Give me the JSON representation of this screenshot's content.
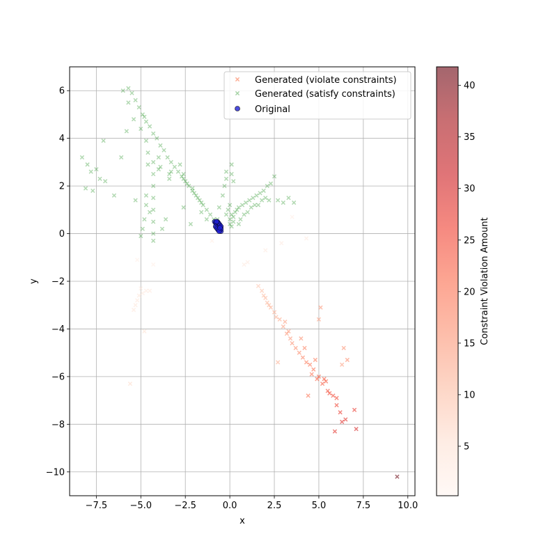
{
  "chart_data": {
    "type": "scatter",
    "xlabel": "x",
    "ylabel": "y",
    "xlim": [
      -9.0,
      10.4
    ],
    "ylim": [
      -11.0,
      7.0
    ],
    "xticks": [
      -7.5,
      -5.0,
      -2.5,
      0.0,
      2.5,
      5.0,
      7.5,
      10.0
    ],
    "yticks": [
      6,
      4,
      2,
      0,
      -2,
      -4,
      -6,
      -8,
      -10
    ],
    "xtick_labels": [
      "−7.5",
      "−5.0",
      "−2.5",
      "0.0",
      "2.5",
      "5.0",
      "7.5",
      "10.0"
    ],
    "ytick_labels": [
      "6",
      "4",
      "2",
      "0",
      "−2",
      "−4",
      "−6",
      "−8",
      "−10"
    ],
    "grid": true,
    "legend_position": "top-right",
    "colorbar": {
      "label": "Constraint Violation Amount",
      "min": 0.2,
      "max": 41.8,
      "ticks": [
        5,
        10,
        15,
        20,
        25,
        30,
        35,
        40
      ],
      "tick_labels": [
        "5",
        "10",
        "15",
        "20",
        "25",
        "30",
        "35",
        "40"
      ],
      "colormap": [
        "#fff5f0",
        "#fee0d2",
        "#fcbba1",
        "#fc9272",
        "#fb6a4a",
        "#ef3b2c",
        "#cb181d",
        "#a50f15",
        "#67000d"
      ]
    },
    "series": [
      {
        "name": "Generated (violate constraints)",
        "marker": "x",
        "color_by": "violation",
        "points": [
          [
            1.6,
            -2.2,
            9
          ],
          [
            1.8,
            -2.4,
            10
          ],
          [
            2.0,
            -2.7,
            11
          ],
          [
            2.1,
            -2.9,
            11
          ],
          [
            2.3,
            -3.1,
            12
          ],
          [
            2.5,
            -3.3,
            12
          ],
          [
            2.8,
            -3.6,
            13
          ],
          [
            3.0,
            -3.9,
            14
          ],
          [
            3.2,
            -4.2,
            15
          ],
          [
            3.4,
            -4.4,
            15
          ],
          [
            3.5,
            -4.6,
            16
          ],
          [
            3.7,
            -4.8,
            17
          ],
          [
            3.9,
            -5.0,
            17
          ],
          [
            4.1,
            -5.2,
            18
          ],
          [
            4.3,
            -5.4,
            19
          ],
          [
            4.5,
            -5.5,
            20
          ],
          [
            4.7,
            -5.7,
            21
          ],
          [
            5.0,
            -6.0,
            22
          ],
          [
            5.2,
            -6.3,
            23
          ],
          [
            5.5,
            -6.6,
            24
          ],
          [
            5.8,
            -6.8,
            25
          ],
          [
            6.0,
            -7.2,
            26
          ],
          [
            6.2,
            -7.5,
            27
          ],
          [
            6.5,
            -7.8,
            28
          ],
          [
            6.3,
            -7.9,
            29
          ],
          [
            7.1,
            -8.2,
            30
          ],
          [
            5.9,
            -8.3,
            28
          ],
          [
            4.9,
            -6.1,
            22
          ],
          [
            3.1,
            -3.7,
            14
          ],
          [
            2.6,
            -3.5,
            12
          ],
          [
            4.6,
            -5.9,
            20
          ],
          [
            5.3,
            -6.1,
            23
          ],
          [
            5.6,
            -6.7,
            25
          ],
          [
            3.3,
            -4.1,
            15
          ],
          [
            4.2,
            -4.8,
            18
          ],
          [
            5.1,
            -3.1,
            15
          ],
          [
            4.4,
            -6.8,
            20
          ],
          [
            6.4,
            -4.8,
            16
          ],
          [
            6.6,
            -5.3,
            17
          ],
          [
            2.7,
            -5.4,
            12
          ],
          [
            5.0,
            -3.6,
            14
          ],
          [
            4.0,
            -4.4,
            16
          ],
          [
            2.2,
            -3.0,
            11
          ],
          [
            1.9,
            -2.6,
            10
          ],
          [
            4.8,
            -5.3,
            19
          ],
          [
            6.0,
            -6.9,
            25
          ],
          [
            5.4,
            -6.2,
            23
          ],
          [
            7.0,
            -7.4,
            27
          ],
          [
            9.4,
            -10.2,
            42
          ],
          [
            6.3,
            -5.5,
            14
          ],
          [
            -5.3,
            -3.0,
            4
          ],
          [
            -5.2,
            -2.8,
            4
          ],
          [
            -5.1,
            -2.6,
            4
          ],
          [
            -4.9,
            -2.5,
            3
          ],
          [
            -4.7,
            -2.4,
            3
          ],
          [
            -4.5,
            -2.4,
            3
          ],
          [
            -5.4,
            -3.2,
            4
          ],
          [
            -5.0,
            -2.3,
            3
          ],
          [
            -4.8,
            -4.1,
            5
          ],
          [
            -5.6,
            -6.3,
            6
          ],
          [
            -5.2,
            -1.1,
            2
          ],
          [
            -4.3,
            -1.3,
            2
          ],
          [
            1.0,
            -1.2,
            3
          ],
          [
            0.8,
            -1.3,
            3
          ],
          [
            2.0,
            -0.7,
            3
          ],
          [
            2.9,
            -0.4,
            3
          ],
          [
            4.3,
            -0.2,
            3
          ],
          [
            3.5,
            0.7,
            2
          ],
          [
            -1.0,
            -0.3,
            2
          ],
          [
            -0.3,
            0.3,
            2
          ]
        ]
      },
      {
        "name": "Generated (satisfy constraints)",
        "marker": "x",
        "color": "#008000",
        "points": [
          [
            -5.7,
            6.1
          ],
          [
            -5.5,
            5.9
          ],
          [
            -5.3,
            5.6
          ],
          [
            -5.1,
            5.3
          ],
          [
            -4.9,
            5.0
          ],
          [
            -4.8,
            4.9
          ],
          [
            -4.7,
            4.7
          ],
          [
            -4.5,
            4.5
          ],
          [
            -4.3,
            4.2
          ],
          [
            -4.1,
            4.0
          ],
          [
            -3.9,
            3.7
          ],
          [
            -3.7,
            3.5
          ],
          [
            -3.5,
            3.2
          ],
          [
            -3.3,
            3.0
          ],
          [
            -3.1,
            2.8
          ],
          [
            -2.9,
            2.6
          ],
          [
            -2.7,
            2.4
          ],
          [
            -2.5,
            2.2
          ],
          [
            -2.3,
            2.0
          ],
          [
            -2.1,
            1.8
          ],
          [
            -1.9,
            1.6
          ],
          [
            -1.7,
            1.4
          ],
          [
            -1.5,
            1.2
          ],
          [
            -1.3,
            1.0
          ],
          [
            -1.1,
            0.8
          ],
          [
            -0.9,
            0.6
          ],
          [
            -4.3,
            3.0
          ],
          [
            -4.3,
            2.5
          ],
          [
            -4.3,
            2.0
          ],
          [
            -4.3,
            1.5
          ],
          [
            -4.3,
            1.0
          ],
          [
            -4.3,
            0.5
          ],
          [
            -4.3,
            0.0
          ],
          [
            -4.3,
            -0.3
          ],
          [
            -4.7,
            1.2
          ],
          [
            -4.7,
            1.6
          ],
          [
            -4.8,
            0.6
          ],
          [
            -4.9,
            0.2
          ],
          [
            -5.0,
            -0.1
          ],
          [
            -4.6,
            2.9
          ],
          [
            -4.6,
            3.4
          ],
          [
            -4.7,
            3.9
          ],
          [
            -4.0,
            3.2
          ],
          [
            -4.0,
            2.7
          ],
          [
            -3.9,
            2.8
          ],
          [
            -3.4,
            2.5
          ],
          [
            -3.4,
            2.3
          ],
          [
            -3.3,
            2.6
          ],
          [
            -2.8,
            2.9
          ],
          [
            -2.6,
            2.5
          ],
          [
            -2.6,
            2.3
          ],
          [
            -2.4,
            2.1
          ],
          [
            -2.1,
            1.9
          ],
          [
            -2.0,
            1.7
          ],
          [
            -1.8,
            1.5
          ],
          [
            -1.6,
            1.3
          ],
          [
            -8.3,
            3.2
          ],
          [
            -8.0,
            2.9
          ],
          [
            -7.8,
            2.6
          ],
          [
            -7.5,
            2.7
          ],
          [
            -7.3,
            2.3
          ],
          [
            -7.0,
            2.2
          ],
          [
            -7.7,
            1.8
          ],
          [
            -8.1,
            1.9
          ],
          [
            -6.5,
            1.6
          ],
          [
            -6.1,
            3.2
          ],
          [
            -7.1,
            3.9
          ],
          [
            -6.0,
            6.0
          ],
          [
            -5.7,
            5.5
          ],
          [
            -5.4,
            4.8
          ],
          [
            -5.8,
            4.3
          ],
          [
            -5.0,
            4.4
          ],
          [
            -0.2,
            0.8
          ],
          [
            -0.1,
            1.0
          ],
          [
            0.0,
            1.2
          ],
          [
            0.0,
            0.6
          ],
          [
            0.1,
            0.8
          ],
          [
            0.2,
            0.7
          ],
          [
            0.3,
            0.9
          ],
          [
            0.4,
            1.0
          ],
          [
            0.5,
            1.1
          ],
          [
            0.7,
            1.2
          ],
          [
            0.9,
            1.3
          ],
          [
            1.1,
            1.4
          ],
          [
            1.3,
            1.5
          ],
          [
            1.5,
            1.6
          ],
          [
            1.7,
            1.7
          ],
          [
            1.9,
            1.8
          ],
          [
            2.1,
            2.0
          ],
          [
            2.3,
            2.1
          ],
          [
            2.5,
            2.4
          ],
          [
            0.1,
            2.5
          ],
          [
            0.2,
            2.2
          ],
          [
            0.1,
            2.9
          ],
          [
            -0.2,
            2.3
          ],
          [
            -0.3,
            2.0
          ],
          [
            -0.4,
            1.6
          ],
          [
            -0.6,
            1.1
          ],
          [
            -0.7,
            0.6
          ],
          [
            -0.8,
            0.5
          ],
          [
            -0.2,
            2.6
          ],
          [
            0.5,
            0.4
          ],
          [
            0.6,
            0.6
          ],
          [
            0.8,
            0.8
          ],
          [
            1.0,
            0.9
          ],
          [
            1.2,
            1.1
          ],
          [
            1.4,
            1.2
          ],
          [
            1.6,
            1.2
          ],
          [
            1.8,
            1.4
          ],
          [
            2.0,
            1.5
          ],
          [
            2.2,
            1.4
          ],
          [
            2.7,
            1.4
          ],
          [
            3.0,
            1.3
          ],
          [
            3.3,
            1.5
          ],
          [
            3.6,
            1.3
          ],
          [
            0.0,
            0.4
          ],
          [
            0.1,
            0.3
          ],
          [
            0.2,
            0.5
          ],
          [
            -1.3,
            0.6
          ],
          [
            -1.6,
            0.9
          ],
          [
            -2.6,
            1.1
          ],
          [
            -3.6,
            0.6
          ],
          [
            -3.8,
            0.2
          ],
          [
            -5.3,
            1.4
          ],
          [
            -4.5,
            0.9
          ],
          [
            -2.2,
            0.4
          ]
        ]
      },
      {
        "name": "Original",
        "marker": "o",
        "color": "#1f1fd6",
        "points": [
          [
            -0.85,
            0.5
          ],
          [
            -0.8,
            0.45
          ],
          [
            -0.75,
            0.4
          ],
          [
            -0.7,
            0.35
          ],
          [
            -0.65,
            0.3
          ],
          [
            -0.6,
            0.25
          ],
          [
            -0.6,
            0.2
          ],
          [
            -0.55,
            0.15
          ],
          [
            -0.5,
            0.1
          ],
          [
            -0.7,
            0.5
          ],
          [
            -0.65,
            0.45
          ],
          [
            -0.6,
            0.4
          ],
          [
            -0.55,
            0.35
          ],
          [
            -0.5,
            0.3
          ],
          [
            -0.5,
            0.2
          ],
          [
            -0.8,
            0.3
          ],
          [
            -0.75,
            0.25
          ],
          [
            -0.7,
            0.2
          ],
          [
            -0.65,
            0.15
          ],
          [
            -0.6,
            0.1
          ],
          [
            -0.75,
            0.5
          ],
          [
            -0.55,
            0.25
          ]
        ]
      }
    ]
  }
}
